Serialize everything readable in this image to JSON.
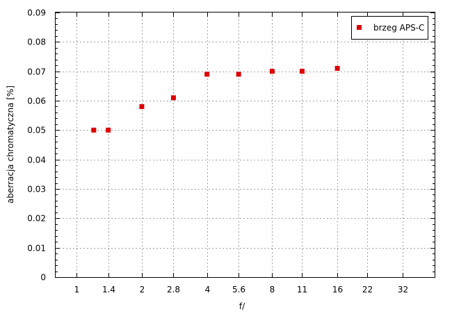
{
  "chart_data": {
    "type": "scatter",
    "title": "",
    "xlabel": "f/",
    "ylabel": "aberracja chromatyczna [%]",
    "x_ticks": [
      "1",
      "1.4",
      "2",
      "2.8",
      "4",
      "5.6",
      "8",
      "11",
      "16",
      "22",
      "32"
    ],
    "ylim": [
      0,
      0.09
    ],
    "y_ticks": [
      "0",
      "0.01",
      "0.02",
      "0.03",
      "0.04",
      "0.05",
      "0.06",
      "0.07",
      "0.08",
      "0.09"
    ],
    "grid": true,
    "legend_position": "top-right",
    "series": [
      {
        "name": "brzeg APS-C",
        "color": "#dd0000",
        "marker": "square",
        "points": [
          {
            "x": 1.2,
            "y": 0.05
          },
          {
            "x": 1.4,
            "y": 0.05
          },
          {
            "x": 2.0,
            "y": 0.058
          },
          {
            "x": 2.8,
            "y": 0.061
          },
          {
            "x": 4.0,
            "y": 0.069
          },
          {
            "x": 5.6,
            "y": 0.069
          },
          {
            "x": 8.0,
            "y": 0.07
          },
          {
            "x": 11.0,
            "y": 0.07
          },
          {
            "x": 16.0,
            "y": 0.071
          }
        ]
      }
    ]
  }
}
